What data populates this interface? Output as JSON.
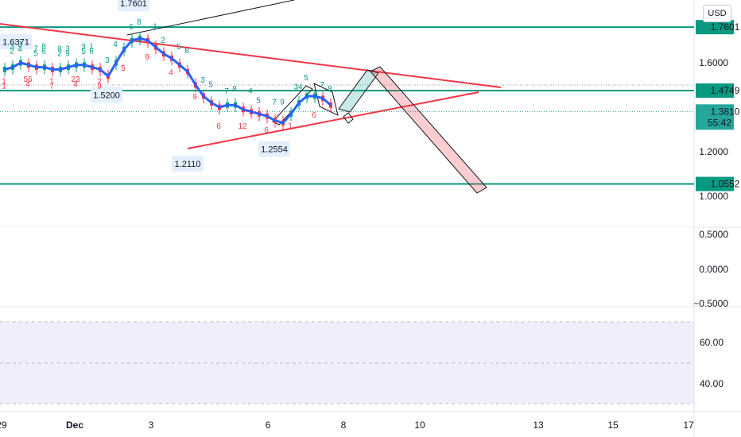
{
  "currency": "USD",
  "price_axis": {
    "ticks": [
      "1.6000",
      "1.2000",
      "1.0000",
      "0.5000",
      "0.0000",
      "−0.5000"
    ],
    "badges": [
      {
        "text": "1.7601",
        "color": "#089981"
      },
      {
        "text": "1.4749",
        "color": "#089981"
      },
      {
        "text": "1.3810",
        "sub": "55:42",
        "color": "#26a69a"
      },
      {
        "text": "1.0552",
        "color": "#089981"
      }
    ]
  },
  "rsi_axis": {
    "ticks": [
      "60.00",
      "40.00"
    ]
  },
  "time_axis": {
    "ticks": [
      "29",
      "Dec",
      "3",
      "6",
      "8",
      "10",
      "13",
      "15",
      "17"
    ]
  },
  "chart_data": {
    "type": "line",
    "series": [
      {
        "values": [
          1.57,
          1.58,
          1.6,
          1.59,
          1.58,
          1.58,
          1.57,
          1.57,
          1.58,
          1.59,
          1.59,
          1.58,
          1.57,
          1.54,
          1.6,
          1.66,
          1.7,
          1.71,
          1.7,
          1.67,
          1.64,
          1.62,
          1.59,
          1.56,
          1.5,
          1.45,
          1.42,
          1.4,
          1.41,
          1.41,
          1.39,
          1.38,
          1.37,
          1.36,
          1.34,
          1.33,
          1.37,
          1.42,
          1.45,
          1.45,
          1.44,
          1.41
        ]
      }
    ],
    "horizontal_levels": [
      1.7601,
      1.4749,
      1.0552
    ],
    "price_labels": [
      "1.6371",
      "1.7601",
      "1.5200",
      "1.2110",
      "1.2554"
    ],
    "price_label_values": [
      1.6371,
      1.7601,
      1.52,
      1.211,
      1.2554
    ],
    "current_price": 1.381,
    "countdown": "55:42",
    "td_labels": [
      "1",
      "2",
      "3",
      "4",
      "5",
      "6",
      "7",
      "8",
      "9",
      "23",
      "3",
      "1",
      "2",
      "3",
      "4",
      "5",
      "6",
      "8",
      "9",
      "1",
      "2",
      "4",
      "5",
      "8",
      "9",
      "3",
      "5",
      "6",
      "7",
      "8",
      "12",
      "4",
      "5",
      "6",
      "7",
      "9",
      "1",
      "34",
      "5",
      "6",
      "7",
      "8",
      "1",
      "3",
      "4",
      "56",
      "7",
      "8",
      "1",
      "2",
      "3",
      "4",
      "5",
      "6",
      "9"
    ],
    "xlim_labels": [
      "29",
      "Dec",
      "3",
      "6",
      "8",
      "10",
      "13",
      "15",
      "17"
    ],
    "ylim": [
      -0.5,
      1.8
    ],
    "rsi_ylim": [
      40,
      60
    ],
    "grid": false
  }
}
